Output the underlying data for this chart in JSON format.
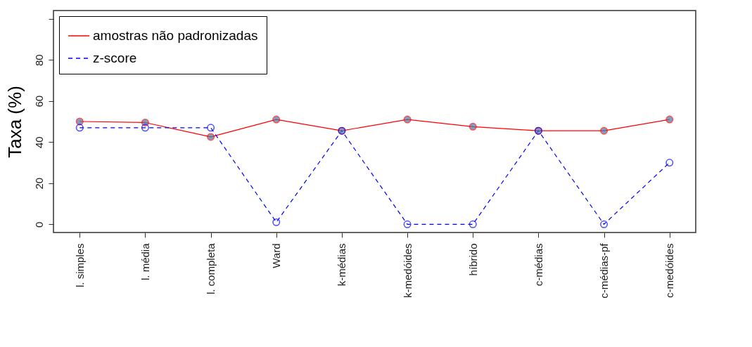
{
  "chart_data": {
    "type": "line",
    "ylabel": "Taxa (%)",
    "categories": [
      "l. simples",
      "l. média",
      "l. completa",
      "Ward",
      "k-médias",
      "k-medóides",
      "híbrido",
      "c-médias",
      "c-médias-pf",
      "c-medóides"
    ],
    "series": [
      {
        "name": "amostras não padronizadas",
        "color": "#ff0000",
        "line_style": "solid",
        "values": [
          50,
          49.5,
          42.5,
          51,
          45.5,
          51,
          47.5,
          45.5,
          45.5,
          51
        ]
      },
      {
        "name": "z-score",
        "color": "#0000ff",
        "line_style": "dashed",
        "values": [
          47,
          47,
          47,
          1,
          45.5,
          0,
          0,
          45.5,
          0,
          30
        ]
      }
    ],
    "ylim": [
      -4,
      104
    ],
    "yticks": [
      0,
      20,
      40,
      60,
      80,
      {
        "value": 100,
        "label": null
      }
    ],
    "grid": false,
    "legend": "top left",
    "marker": "circle"
  }
}
